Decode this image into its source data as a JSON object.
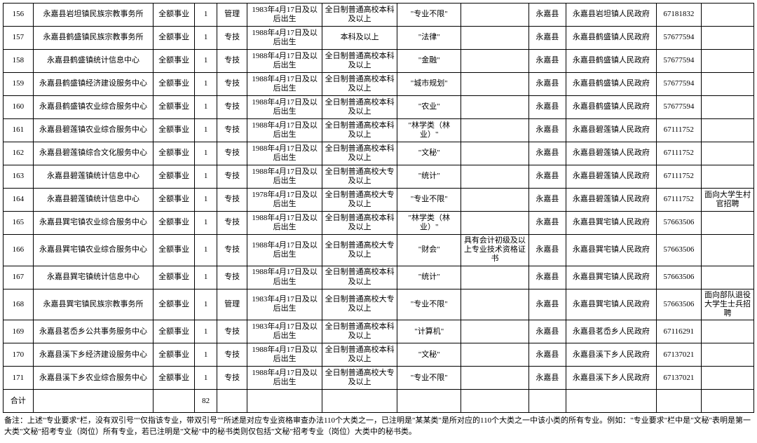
{
  "table": {
    "col_widths_pct": [
      4,
      16,
      5.5,
      3,
      4,
      10,
      10,
      8.5,
      9,
      5,
      12,
      6,
      7
    ],
    "rows": [
      [
        "156",
        "永嘉县岩坦镇民族宗教事务所",
        "全额事业",
        "1",
        "管理",
        "1983年4月17日及以后出生",
        "全日制普通高校本科及以上",
        "\"专业不限\"",
        "",
        "永嘉县",
        "永嘉县岩坦镇人民政府",
        "67181832",
        ""
      ],
      [
        "157",
        "永嘉县鹤盛镇民族宗教事务所",
        "全额事业",
        "1",
        "专技",
        "1988年4月17日及以后出生",
        "本科及以上",
        "\"法律\"",
        "",
        "永嘉县",
        "永嘉县鹤盛镇人民政府",
        "57677594",
        ""
      ],
      [
        "158",
        "永嘉县鹤盛镇统计信息中心",
        "全额事业",
        "1",
        "专技",
        "1988年4月17日及以后出生",
        "全日制普通高校本科及以上",
        "\"金融\"",
        "",
        "永嘉县",
        "永嘉县鹤盛镇人民政府",
        "57677594",
        ""
      ],
      [
        "159",
        "永嘉县鹤盛镇经济建设服务中心",
        "全额事业",
        "1",
        "专技",
        "1988年4月17日及以后出生",
        "全日制普通高校本科及以上",
        "\"城市规划\"",
        "",
        "永嘉县",
        "永嘉县鹤盛镇人民政府",
        "57677594",
        ""
      ],
      [
        "160",
        "永嘉县鹤盛镇农业综合服务中心",
        "全额事业",
        "1",
        "专技",
        "1988年4月17日及以后出生",
        "全日制普通高校本科及以上",
        "\"农业\"",
        "",
        "永嘉县",
        "永嘉县鹤盛镇人民政府",
        "57677594",
        ""
      ],
      [
        "161",
        "永嘉县碧莲镇农业综合服务中心",
        "全额事业",
        "1",
        "专技",
        "1988年4月17日及以后出生",
        "全日制普通高校本科及以上",
        "\"林学类（林业）\"",
        "",
        "永嘉县",
        "永嘉县碧莲镇人民政府",
        "67111752",
        ""
      ],
      [
        "162",
        "永嘉县碧莲镇综合文化服务中心",
        "全额事业",
        "1",
        "专技",
        "1988年4月17日及以后出生",
        "全日制普通高校本科及以上",
        "\"文秘\"",
        "",
        "永嘉县",
        "永嘉县碧莲镇人民政府",
        "67111752",
        ""
      ],
      [
        "163",
        "永嘉县碧莲镇统计信息中心",
        "全额事业",
        "1",
        "专技",
        "1988年4月17日及以后出生",
        "全日制普通高校大专及以上",
        "\"统计\"",
        "",
        "永嘉县",
        "永嘉县碧莲镇人民政府",
        "67111752",
        ""
      ],
      [
        "164",
        "永嘉县碧莲镇统计信息中心",
        "全额事业",
        "1",
        "专技",
        "1978年4月17日及以后出生",
        "全日制普通高校大专及以上",
        "\"专业不限\"",
        "",
        "永嘉县",
        "永嘉县碧莲镇人民政府",
        "67111752",
        "面向大学生村官招聘"
      ],
      [
        "165",
        "永嘉县巽宅镇农业综合服务中心",
        "全额事业",
        "1",
        "专技",
        "1988年4月17日及以后出生",
        "全日制普通高校本科及以上",
        "\"林学类（林业）\"",
        "",
        "永嘉县",
        "永嘉县巽宅镇人民政府",
        "57663506",
        ""
      ],
      [
        "166",
        "永嘉县巽宅镇农业综合服务中心",
        "全额事业",
        "1",
        "专技",
        "1988年4月17日及以后出生",
        "全日制普通高校大专及以上",
        "\"财会\"",
        "具有会计初级及以上专业技术资格证书",
        "永嘉县",
        "永嘉县巽宅镇人民政府",
        "57663506",
        ""
      ],
      [
        "167",
        "永嘉县巽宅镇统计信息中心",
        "全额事业",
        "1",
        "专技",
        "1988年4月17日及以后出生",
        "全日制普通高校本科及以上",
        "\"统计\"",
        "",
        "永嘉县",
        "永嘉县巽宅镇人民政府",
        "57663506",
        ""
      ],
      [
        "168",
        "永嘉县巽宅镇民族宗教事务所",
        "全额事业",
        "1",
        "管理",
        "1983年4月17日及以后出生",
        "全日制普通高校大专及以上",
        "\"专业不限\"",
        "",
        "永嘉县",
        "永嘉县巽宅镇人民政府",
        "57663506",
        "面向部队退役大学生士兵招聘"
      ],
      [
        "169",
        "永嘉县茗岙乡公共事务服务中心",
        "全额事业",
        "1",
        "专技",
        "1983年4月17日及以后出生",
        "全日制普通高校本科及以上",
        "\"计算机\"",
        "",
        "永嘉县",
        "永嘉县茗岙乡人民政府",
        "67116291",
        ""
      ],
      [
        "170",
        "永嘉县溪下乡经济建设服务中心",
        "全额事业",
        "1",
        "专技",
        "1988年4月17日及以后出生",
        "全日制普通高校本科及以上",
        "\"文秘\"",
        "",
        "永嘉县",
        "永嘉县溪下乡人民政府",
        "67137021",
        ""
      ],
      [
        "171",
        "永嘉县溪下乡农业综合服务中心",
        "全额事业",
        "1",
        "专技",
        "1988年4月17日及以后出生",
        "全日制普通高校大专及以上",
        "\"专业不限\"",
        "",
        "永嘉县",
        "永嘉县溪下乡人民政府",
        "67137021",
        ""
      ]
    ],
    "total_row": [
      "合计",
      "",
      "",
      "82",
      "",
      "",
      "",
      "",
      "",
      "",
      "",
      "",
      ""
    ],
    "footnote": "备注：上述\"专业要求\"栏，没有双引号\"\"仅指该专业，带双引号\"\"所述是对应专业资格审查办法110个大类之一，已注明是\"某某类\"是所对应的110个大类之一中该小类的所有专业。例如：\"专业要求\"栏中是\"文秘\"表明是第一大类\"文秘\"招考专业（岗位）所有专业，若已注明是\"文秘\"中的秘书类则仅包括\"文秘\"招考专业（岗位）大类中的秘书类。"
  }
}
